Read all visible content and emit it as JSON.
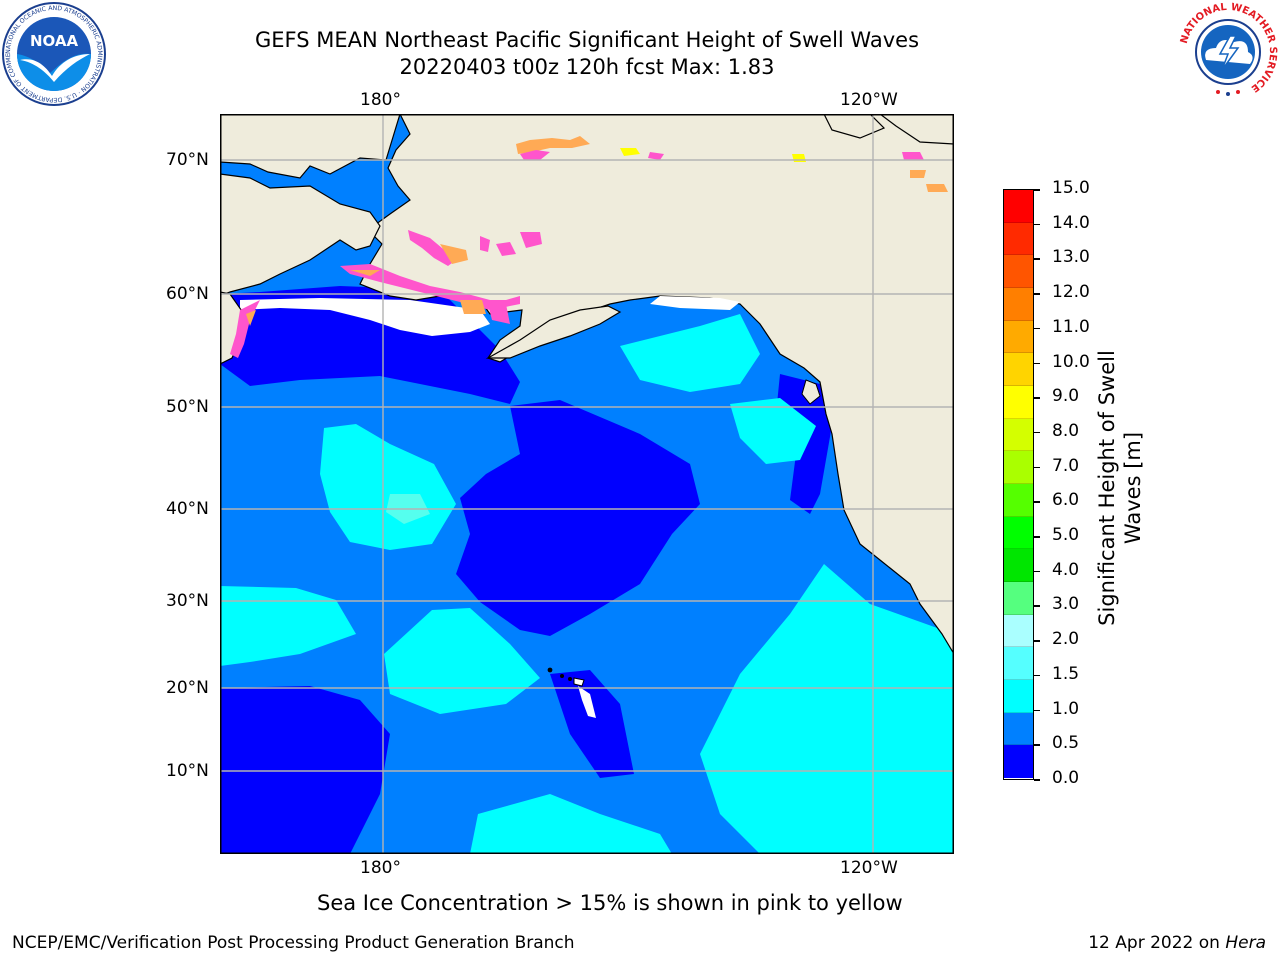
{
  "header": {
    "title_line1": "GEFS MEAN Northeast Pacific Significant Height of Swell Waves",
    "title_line2": "20220403 t00z 120h fcst   Max: 1.83"
  },
  "logos": {
    "noaa_text": "NOAA",
    "noaa_ring": "NATIONAL OCEANIC AND ATMOSPHERIC ADMINISTRATION · U.S. DEPARTMENT OF COMMERCE",
    "nws_ring": "NATIONAL WEATHER SERVICE"
  },
  "map": {
    "lon_labels_top": [
      "180°",
      "120°W"
    ],
    "lon_labels_bottom": [
      "180°",
      "120°W"
    ],
    "lat_labels": [
      "70°N",
      "60°N",
      "50°N",
      "40°N",
      "30°N",
      "20°N",
      "10°N"
    ],
    "colors": {
      "land": "#efecdc",
      "ice_free_white": "#ffffff",
      "gridline": "#b3b3b3",
      "sea_0_05": "#0000ff",
      "sea_05_10": "#0080ff",
      "sea_10_15": "#00ffff",
      "sea_15_20": "#55ffee",
      "sea_20_25": "#aaffee",
      "ice_pink": "#ff55cc",
      "ice_orange": "#ffaa55",
      "ice_yellow": "#ffff00"
    }
  },
  "colorbar": {
    "title_line1": "Significant Height of Swell",
    "title_line2": "Waves [m]",
    "ticks": [
      "15.0",
      "14.0",
      "13.0",
      "12.0",
      "11.0",
      "10.0",
      "9.0",
      "8.0",
      "7.0",
      "6.0",
      "5.0",
      "4.0",
      "3.0",
      "2.0",
      "1.5",
      "1.0",
      "0.5",
      "0.0"
    ],
    "colors_top_to_bottom": [
      "#ff0000",
      "#ff2a00",
      "#ff5500",
      "#ff7f00",
      "#ffaa00",
      "#ffd400",
      "#ffff00",
      "#d4ff00",
      "#aaff00",
      "#55ff00",
      "#00ff00",
      "#00e600",
      "#55ff7f",
      "#aaffff",
      "#55ffff",
      "#00ffff",
      "#0080ff",
      "#0000ff"
    ]
  },
  "note": "Sea Ice Concentration > 15% is shown in pink to yellow",
  "footer": {
    "left": "NCEP/EMC/Verification Post Processing Product Generation Branch",
    "right_prefix": "12 Apr 2022 on ",
    "right_host": "Hera"
  }
}
